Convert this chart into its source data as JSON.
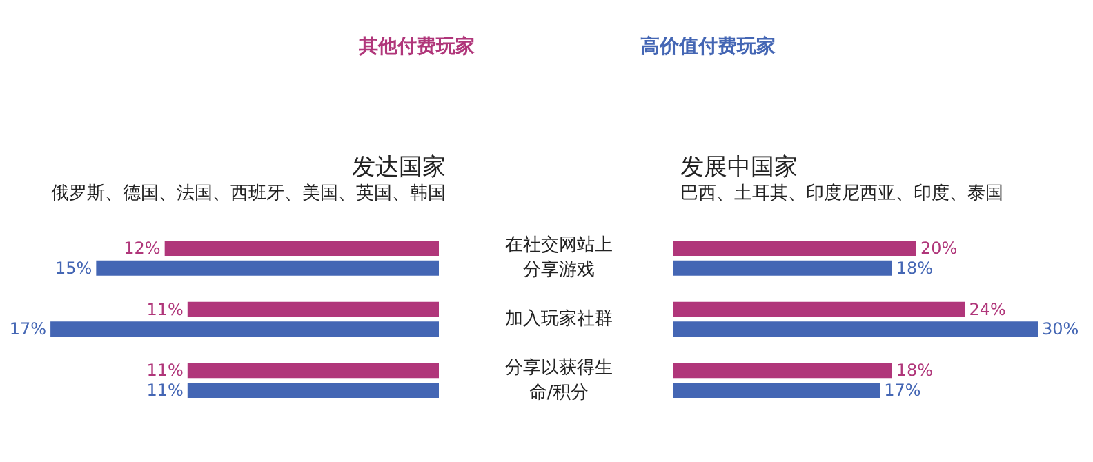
{
  "chart_data": [
    {
      "type": "bar",
      "orientation": "horizontal",
      "title": "发达国家",
      "subtitle": "俄罗斯、德国、法国、西班牙、美国、英国、韩国",
      "categories": [
        "在社交网站上分享游戏",
        "加入玩家社群",
        "分享以获得生命/积分"
      ],
      "series": [
        {
          "name": "其他付费玩家",
          "color": "#b0367a",
          "values": [
            12,
            11,
            11
          ],
          "value_labels": [
            "12%",
            "11%",
            "11%"
          ]
        },
        {
          "name": "高价值付费玩家",
          "color": "#4466b4",
          "values": [
            15,
            17,
            11
          ],
          "value_labels": [
            "15%",
            "17%",
            "11%"
          ]
        }
      ],
      "legend": "top",
      "tick_labels": "y"
    },
    {
      "type": "bar",
      "orientation": "horizontal",
      "title": "发展中国家",
      "subtitle": "巴西、土耳其、印度尼西亚、印度、泰国",
      "categories": [
        "在社交网站上分享游戏",
        "加入玩家社群",
        "分享以获得生命/积分"
      ],
      "series": [
        {
          "color": "#b0367a",
          "values": [
            20,
            24,
            18
          ],
          "value_labels": [
            "20%",
            "24%",
            "18%"
          ]
        },
        {
          "color": "#4466b4",
          "values": [
            18,
            30,
            17
          ],
          "value_labels": [
            "18%",
            "30%",
            "17%"
          ]
        }
      ],
      "tick_labels": false
    }
  ]
}
